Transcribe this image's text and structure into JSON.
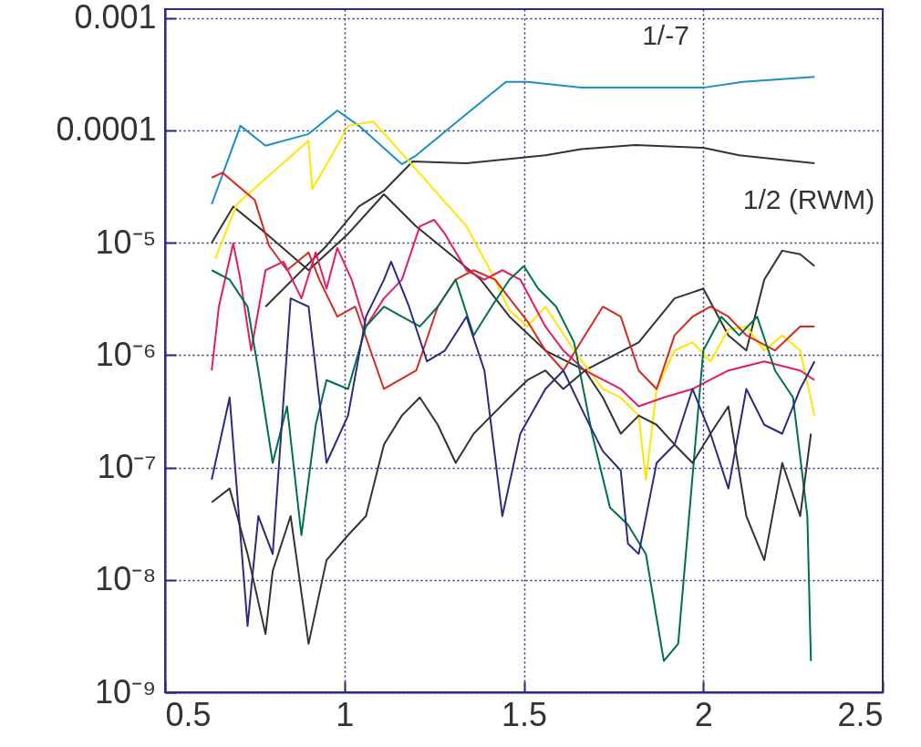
{
  "chart_data": {
    "type": "line",
    "log": true,
    "grid": true,
    "xlim": [
      0.5,
      2.5
    ],
    "xticks": [
      0.5,
      1,
      1.5,
      2,
      2.5
    ],
    "ylim": [
      1e-09,
      0.0012
    ],
    "yticks": [
      {
        "value": 1e-09,
        "label": "10⁻⁹"
      },
      {
        "value": 1e-08,
        "label": "10⁻⁸"
      },
      {
        "value": 1e-07,
        "label": "10⁻⁷"
      },
      {
        "value": 1e-06,
        "label": "10⁻⁶"
      },
      {
        "value": 1e-05,
        "label": "10⁻⁵"
      },
      {
        "value": 0.0001,
        "label": "0.0001"
      },
      {
        "value": 0.001,
        "label": "0.001"
      }
    ],
    "annotations": [
      "1/-7",
      "1/2 (RWM)"
    ],
    "series": [
      {
        "color": "#1a8fc8",
        "x": [
          0.63,
          0.71,
          0.78,
          0.9,
          0.98,
          1.04,
          1.16,
          1.2,
          1.34,
          1.45,
          1.51,
          1.66,
          2.0,
          2.11,
          2.31
        ],
        "values": [
          2.2e-05,
          0.00011,
          7.3e-05,
          9.3e-05,
          0.00015,
          0.00011,
          5e-05,
          6e-05,
          0.00014,
          0.00027,
          0.00027,
          0.00024,
          0.00024,
          0.00027,
          0.0003
        ]
      },
      {
        "color": "#333333",
        "x": [
          0.78,
          0.95,
          1.04,
          1.11,
          1.19,
          1.34,
          1.56,
          1.66,
          1.81,
          2.0,
          2.1,
          2.31
        ],
        "values": [
          2.7e-06,
          9.4e-06,
          2.1e-05,
          2.9e-05,
          5.3e-05,
          5.1e-05,
          6e-05,
          6.8e-05,
          7.4e-05,
          7e-05,
          6e-05,
          5.1e-05
        ]
      },
      {
        "color": "#333333",
        "x": [
          0.63,
          0.69,
          0.77,
          0.9,
          1.01,
          1.11,
          1.2,
          1.32,
          1.38,
          1.46,
          1.56,
          1.67,
          1.82,
          1.92,
          2.0,
          2.07,
          2.12,
          2.17,
          2.22,
          2.27,
          2.31
        ],
        "values": [
          1e-05,
          2.1e-05,
          1.3e-05,
          5.7e-06,
          1.2e-05,
          2.7e-05,
          1.4e-05,
          6.8e-06,
          4.7e-06,
          2.2e-06,
          1.1e-06,
          7.3e-07,
          1.3e-06,
          3.2e-06,
          3.9e-06,
          1.5e-06,
          1.1e-06,
          4.7e-06,
          8.5e-06,
          7.9e-06,
          6.2e-06
        ]
      },
      {
        "color": "#ffe600",
        "x": [
          0.64,
          0.7,
          0.77,
          0.9,
          0.91,
          0.97,
          1.01,
          1.08,
          1.18,
          1.34,
          1.41,
          1.46,
          1.51,
          1.56,
          1.64,
          1.72,
          1.77,
          1.82,
          1.84,
          1.87,
          1.92,
          1.97,
          2.02,
          2.07,
          2.12,
          2.17,
          2.22,
          2.27,
          2.31
        ],
        "values": [
          7.2e-06,
          2.2e-05,
          3.5e-05,
          8.1e-05,
          3e-05,
          6.4e-05,
          0.00011,
          0.00012,
          5.3e-05,
          1.4e-05,
          5.4e-06,
          2.5e-06,
          1.8e-06,
          2.7e-06,
          1.1e-06,
          5e-07,
          4.2e-07,
          2.9e-07,
          7.8e-08,
          5e-07,
          1.1e-06,
          1.3e-06,
          8.8e-07,
          1.7e-06,
          1.8e-06,
          1.1e-06,
          1.5e-06,
          1.1e-06,
          2.9e-07
        ]
      },
      {
        "color": "#d42a20",
        "x": [
          0.63,
          0.66,
          0.75,
          0.79,
          0.84,
          0.9,
          0.93,
          0.98,
          1.03,
          1.11,
          1.2,
          1.26,
          1.31,
          1.36,
          1.42,
          1.46,
          1.51,
          1.56,
          1.61,
          1.67,
          1.72,
          1.77,
          1.82,
          1.87,
          1.92,
          1.97,
          2.02,
          2.07,
          2.12,
          2.2,
          2.27,
          2.31
        ],
        "values": [
          3.8e-05,
          4.2e-05,
          2.4e-05,
          9.4e-06,
          5.7e-06,
          8.2e-06,
          4.7e-06,
          2.2e-06,
          2.7e-06,
          5e-07,
          7.3e-07,
          2.7e-06,
          4.7e-06,
          5.7e-06,
          4.7e-06,
          3.2e-06,
          2e-06,
          1.1e-06,
          7.3e-07,
          1.5e-06,
          2.7e-06,
          2.2e-06,
          7.3e-07,
          5e-07,
          1.5e-06,
          2.2e-06,
          2.7e-06,
          2.2e-06,
          1.5e-06,
          1.1e-06,
          1.8e-06,
          1.8e-06
        ]
      },
      {
        "color": "#e31c63",
        "x": [
          0.63,
          0.65,
          0.69,
          0.71,
          0.74,
          0.78,
          0.83,
          0.88,
          0.92,
          0.95,
          0.98,
          1.02,
          1.06,
          1.11,
          1.16,
          1.21,
          1.25,
          1.28,
          1.34,
          1.39,
          1.44,
          1.49,
          1.56,
          1.61,
          1.67,
          1.77,
          1.82,
          1.89,
          1.97,
          2.07,
          2.17,
          2.27,
          2.31
        ],
        "values": [
          7.3e-07,
          2.7e-06,
          9.9e-06,
          4.7e-06,
          1.1e-06,
          5.7e-06,
          6.8e-06,
          3.2e-06,
          8.2e-06,
          3.9e-06,
          9e-06,
          4.7e-06,
          1.8e-06,
          3.2e-06,
          4.7e-06,
          1.4e-05,
          1.6e-05,
          1.2e-05,
          5.7e-06,
          4.7e-06,
          5.7e-06,
          4.7e-06,
          1.8e-06,
          1.1e-06,
          7.3e-07,
          5e-07,
          3.5e-07,
          4.2e-07,
          5e-07,
          7.3e-07,
          8.8e-07,
          7.3e-07,
          6e-07
        ]
      },
      {
        "color": "#00704a",
        "x": [
          0.63,
          0.68,
          0.73,
          0.76,
          0.8,
          0.84,
          0.88,
          0.92,
          0.95,
          1.01,
          1.06,
          1.11,
          1.16,
          1.21,
          1.26,
          1.31,
          1.36,
          1.41,
          1.46,
          1.5,
          1.54,
          1.59,
          1.64,
          1.69,
          1.74,
          1.79,
          1.84,
          1.89,
          1.93,
          2.0,
          2.05,
          2.1,
          2.15,
          2.2,
          2.25,
          2.29,
          2.3
        ],
        "values": [
          5.7e-06,
          4.7e-06,
          2.7e-06,
          7.3e-07,
          1.1e-07,
          3.5e-07,
          2.5e-08,
          2.4e-07,
          6e-07,
          5e-07,
          1.8e-06,
          2.7e-06,
          2.2e-06,
          1.8e-06,
          2.7e-06,
          4.7e-06,
          1.5e-06,
          2.7e-06,
          4.7e-06,
          6.2e-06,
          3.9e-06,
          2.7e-06,
          1.3e-06,
          2e-07,
          4.4e-08,
          3.1e-08,
          1.7e-08,
          1.9e-09,
          2.7e-09,
          1.1e-06,
          2.2e-06,
          1.5e-06,
          2.2e-06,
          7.3e-07,
          4.2e-07,
          3.7e-08,
          1.9e-09
        ]
      },
      {
        "color": "#2b2a85",
        "x": [
          0.63,
          0.68,
          0.73,
          0.76,
          0.8,
          0.85,
          0.9,
          0.95,
          1.01,
          1.06,
          1.11,
          1.13,
          1.18,
          1.23,
          1.28,
          1.34,
          1.39,
          1.44,
          1.49,
          1.56,
          1.61,
          1.67,
          1.72,
          1.77,
          1.79,
          1.82,
          1.87,
          1.92,
          1.97,
          2.02,
          2.07,
          2.12,
          2.17,
          2.22,
          2.27,
          2.31
        ],
        "values": [
          7.8e-08,
          4.2e-07,
          3.9e-09,
          3.7e-08,
          1.7e-08,
          3.2e-06,
          2.7e-06,
          1.1e-07,
          2.9e-07,
          2.2e-06,
          4.7e-06,
          6.8e-06,
          2.7e-06,
          8.8e-07,
          1.1e-06,
          2.2e-06,
          7.3e-07,
          3.7e-08,
          2e-07,
          5e-07,
          7.3e-07,
          2.9e-07,
          1.4e-07,
          9.4e-08,
          2.1e-08,
          1.7e-08,
          1.1e-07,
          1.6e-07,
          5e-07,
          2e-07,
          6.5e-08,
          5e-07,
          2.4e-07,
          2e-07,
          5e-07,
          8.8e-07
        ]
      },
      {
        "color": "#333333",
        "x": [
          0.63,
          0.68,
          0.73,
          0.78,
          0.8,
          0.85,
          0.9,
          0.95,
          1.01,
          1.06,
          1.11,
          1.16,
          1.21,
          1.26,
          1.31,
          1.36,
          1.41,
          1.46,
          1.51,
          1.56,
          1.61,
          1.67,
          1.72,
          1.77,
          1.82,
          1.87,
          1.92,
          1.97,
          2.02,
          2.07,
          2.12,
          2.17,
          2.22,
          2.27,
          2.3
        ],
        "values": [
          4.9e-08,
          6.5e-08,
          1.7e-08,
          3.3e-09,
          1.2e-08,
          3.7e-08,
          2.7e-09,
          1.5e-08,
          2.5e-08,
          3.7e-08,
          1.6e-07,
          2.9e-07,
          4.2e-07,
          2.4e-07,
          1.1e-07,
          2e-07,
          2.9e-07,
          4.2e-07,
          6e-07,
          7.3e-07,
          5e-07,
          7.3e-07,
          4.2e-07,
          2e-07,
          2.9e-07,
          2.4e-07,
          1.6e-07,
          1.1e-07,
          2e-07,
          3.5e-07,
          3.7e-08,
          1.5e-08,
          1.1e-07,
          3.7e-08,
          2e-07
        ]
      }
    ]
  }
}
